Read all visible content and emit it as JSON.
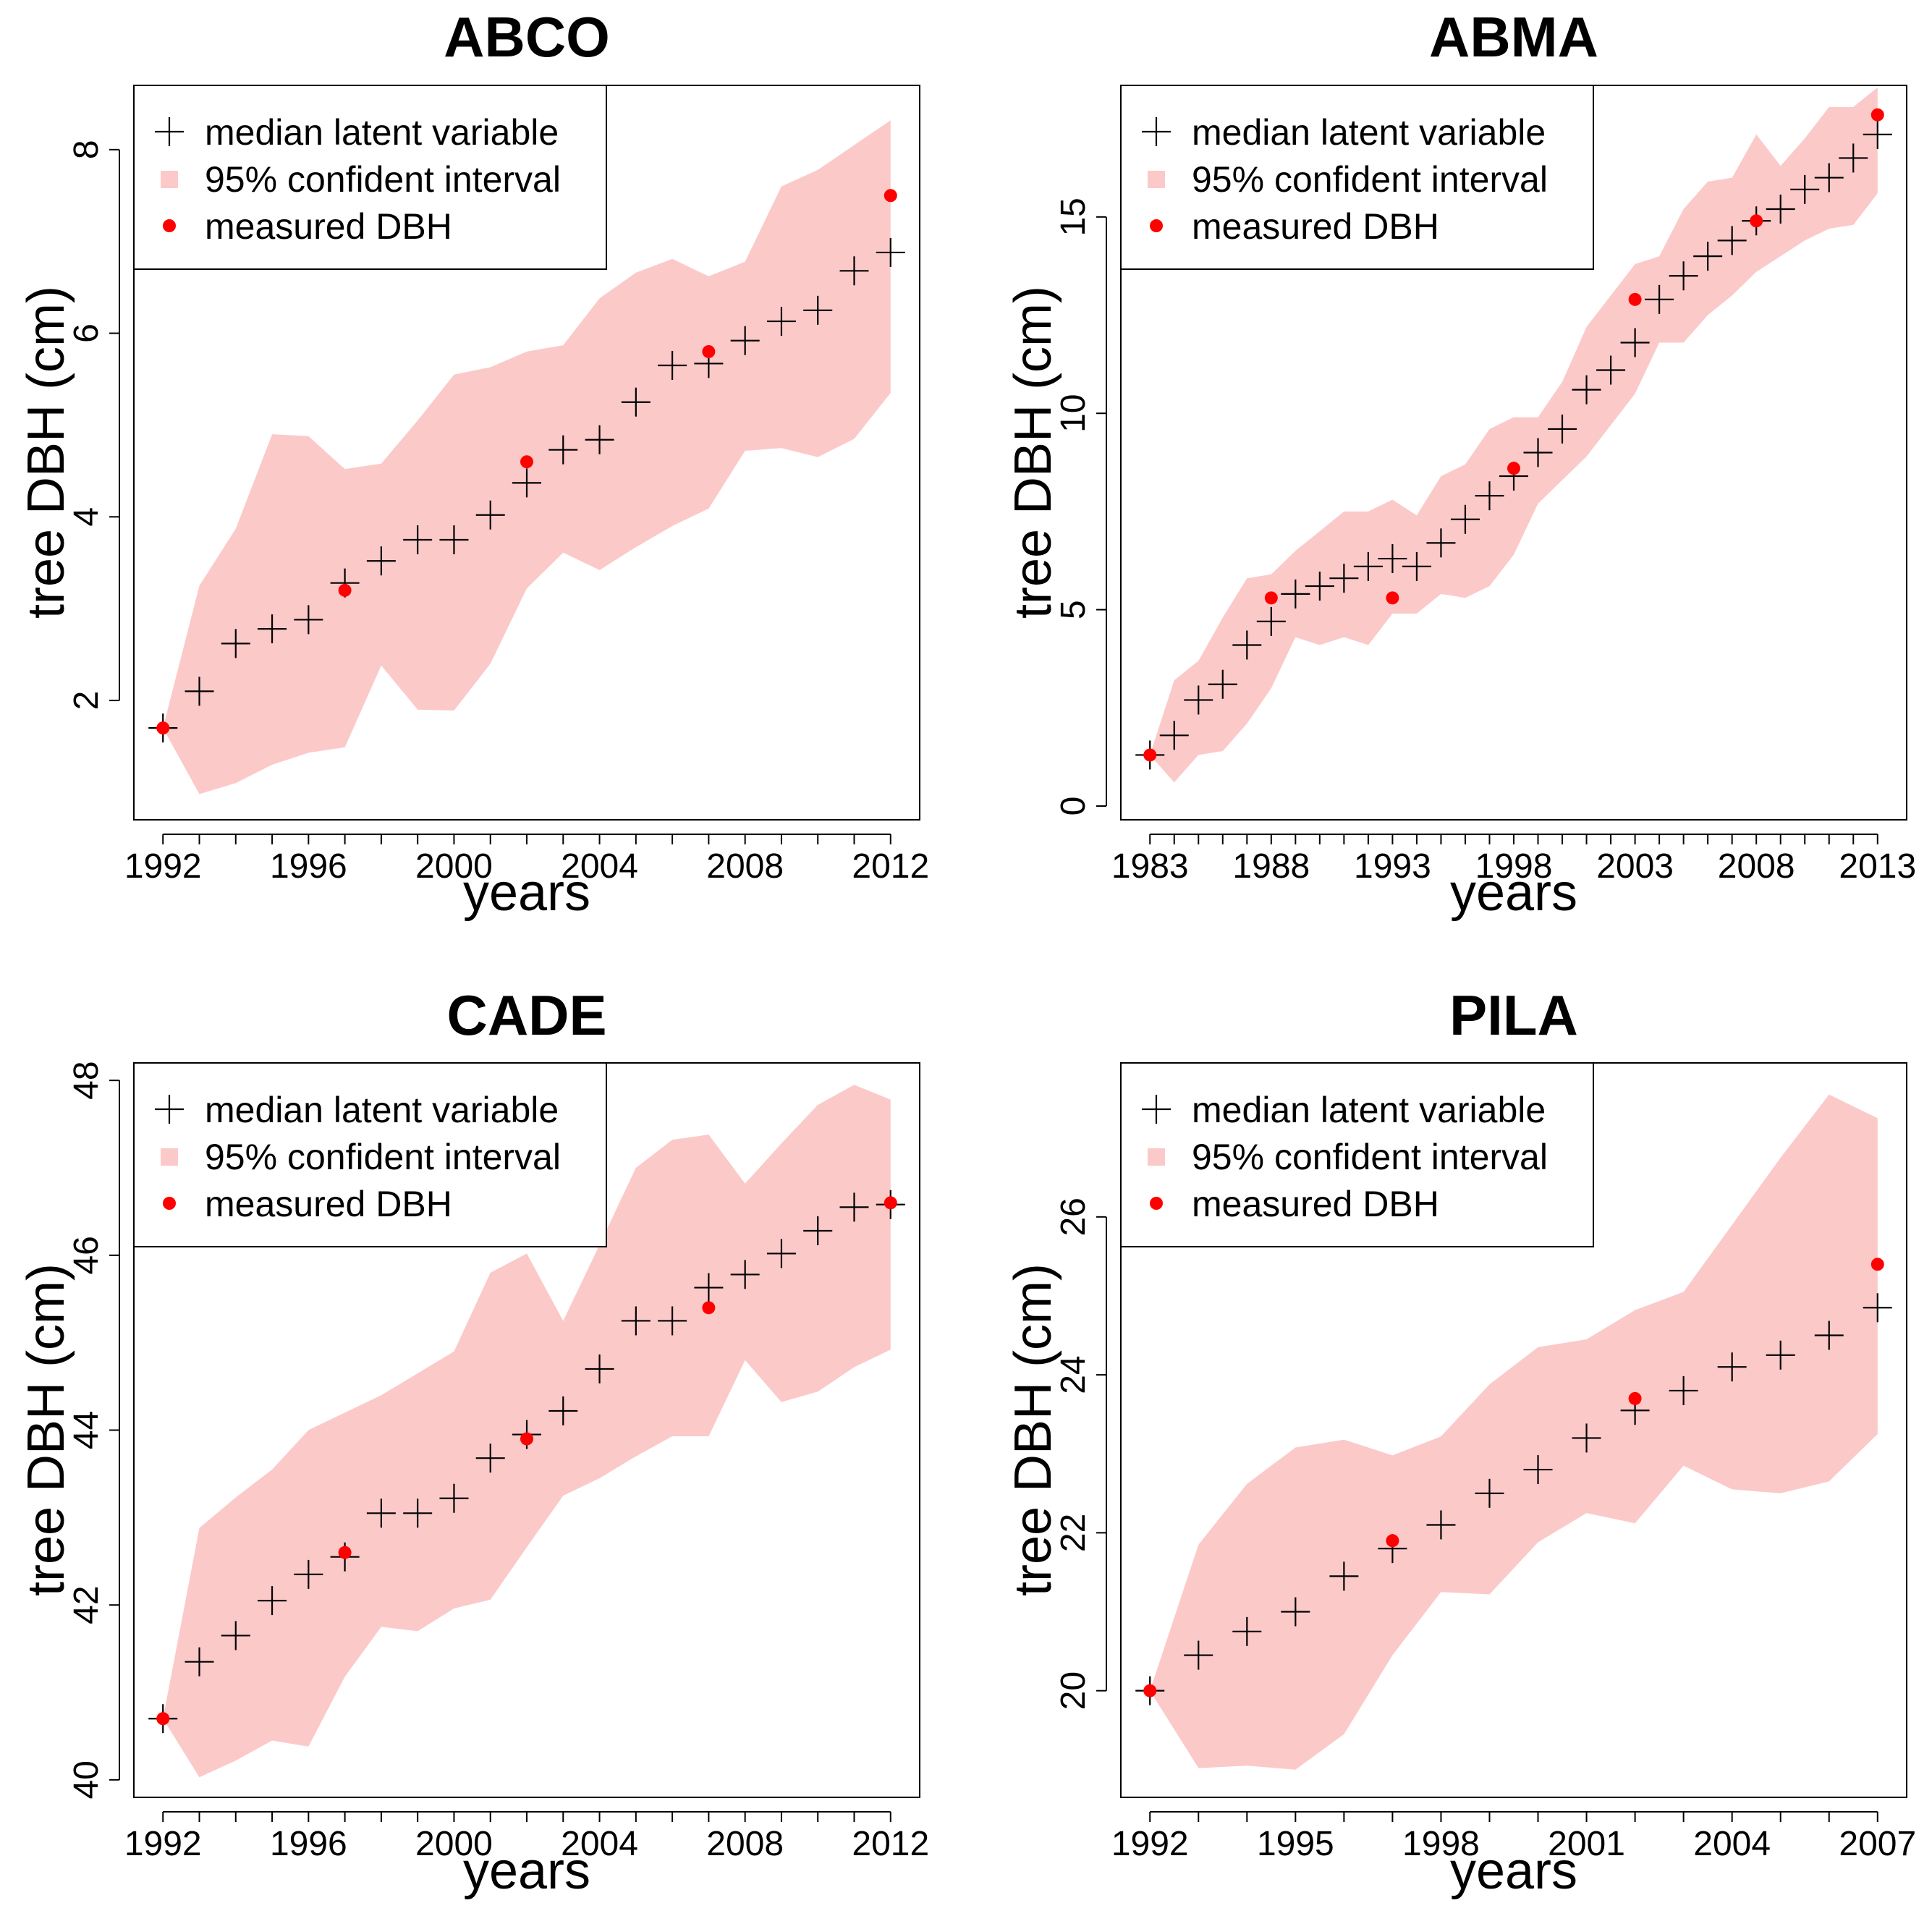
{
  "colors": {
    "band": "#fcc9c9",
    "median": "#000000",
    "measured": "#ff0000"
  },
  "legend": {
    "median_label": "median latent variable",
    "ci_label": "95% confident interval",
    "measured_label": "measured DBH"
  },
  "chart_data": [
    {
      "type": "line",
      "title": "ABCO",
      "xlabel": "years",
      "ylabel": "tree DBH (cm)",
      "xlim": [
        1991.2,
        2012.8
      ],
      "ylim": [
        0.7,
        8.7
      ],
      "xticks": [
        1992,
        1996,
        2000,
        2004,
        2008,
        2012
      ],
      "yticks": [
        2,
        4,
        6,
        8
      ],
      "x": [
        1992,
        1993,
        1994,
        1995,
        1996,
        1997,
        1998,
        1999,
        2000,
        2001,
        2002,
        2003,
        2004,
        2005,
        2006,
        2007,
        2008,
        2009,
        2010,
        2011,
        2012
      ],
      "series": [
        {
          "name": "median latent variable",
          "values": [
            1.7,
            2.1,
            2.62,
            2.78,
            2.88,
            3.28,
            3.52,
            3.75,
            3.75,
            4.02,
            4.37,
            4.73,
            4.84,
            5.25,
            5.65,
            5.67,
            5.92,
            6.13,
            6.25,
            6.68,
            6.88
          ]
        },
        {
          "name": "95% confident interval lower",
          "values": [
            1.7,
            0.98,
            1.1,
            1.3,
            1.43,
            1.49,
            2.38,
            1.9,
            1.89,
            2.4,
            3.22,
            3.61,
            3.42,
            3.67,
            3.9,
            4.09,
            4.72,
            4.75,
            4.65,
            4.85,
            5.35
          ]
        },
        {
          "name": "95% confident interval upper",
          "values": [
            1.7,
            3.25,
            3.87,
            4.9,
            4.88,
            4.52,
            4.58,
            5.05,
            5.55,
            5.63,
            5.8,
            5.87,
            6.38,
            6.66,
            6.81,
            6.62,
            6.78,
            7.6,
            7.78,
            8.05,
            8.32
          ]
        }
      ],
      "measured": {
        "x": [
          1992,
          1997,
          2002,
          2007,
          2012
        ],
        "values": [
          1.7,
          3.2,
          4.6,
          5.8,
          7.5
        ]
      }
    },
    {
      "type": "line",
      "title": "ABMA",
      "xlabel": "years",
      "ylabel": "tree DBH (cm)",
      "xlim": [
        1981.8,
        2014.2
      ],
      "ylim": [
        -0.35,
        18.35
      ],
      "xticks": [
        1983,
        1988,
        1993,
        1998,
        2003,
        2008,
        2013
      ],
      "yticks": [
        0,
        5,
        10,
        15
      ],
      "x": [
        1983,
        1984,
        1985,
        1986,
        1987,
        1988,
        1989,
        1990,
        1991,
        1992,
        1993,
        1994,
        1995,
        1996,
        1997,
        1998,
        1999,
        2000,
        2001,
        2002,
        2003,
        2004,
        2005,
        2006,
        2007,
        2008,
        2009,
        2010,
        2011,
        2012,
        2013
      ],
      "series": [
        {
          "name": "median latent variable",
          "values": [
            1.3,
            1.8,
            2.7,
            3.1,
            4.1,
            4.7,
            5.4,
            5.6,
            5.8,
            6.1,
            6.3,
            6.1,
            6.7,
            7.3,
            7.9,
            8.4,
            9.0,
            9.6,
            10.6,
            11.1,
            11.8,
            12.9,
            13.5,
            14.0,
            14.4,
            14.9,
            15.2,
            15.7,
            16.0,
            16.5,
            17.1
          ]
        },
        {
          "name": "95% confident interval lower",
          "values": [
            1.3,
            0.6,
            1.3,
            1.4,
            2.1,
            3.0,
            4.3,
            4.1,
            4.3,
            4.1,
            4.9,
            4.9,
            5.4,
            5.3,
            5.6,
            6.4,
            7.7,
            8.3,
            8.9,
            9.7,
            10.5,
            11.8,
            11.8,
            12.5,
            13.0,
            13.6,
            14.0,
            14.4,
            14.7,
            14.8,
            15.6
          ]
        },
        {
          "name": "95% confident interval upper",
          "values": [
            1.3,
            3.2,
            3.7,
            4.8,
            5.8,
            5.9,
            6.5,
            7.0,
            7.5,
            7.5,
            7.8,
            7.4,
            8.4,
            8.7,
            9.6,
            9.9,
            9.9,
            10.8,
            12.2,
            13.0,
            13.8,
            14.0,
            15.2,
            15.9,
            16.0,
            17.1,
            16.3,
            17.0,
            17.8,
            17.8,
            18.3
          ]
        }
      ],
      "measured": {
        "x": [
          1983,
          1988,
          1993,
          1998,
          2003,
          2008,
          2013
        ],
        "values": [
          1.3,
          5.3,
          5.3,
          8.6,
          12.9,
          14.9,
          17.6
        ]
      }
    },
    {
      "type": "line",
      "title": "CADE",
      "xlabel": "years",
      "ylabel": "tree DBH (cm)",
      "xlim": [
        1991.2,
        2012.8
      ],
      "ylim": [
        39.8,
        48.2
      ],
      "xticks": [
        1992,
        1996,
        2000,
        2004,
        2008,
        2012
      ],
      "yticks": [
        40,
        42,
        44,
        46,
        48
      ],
      "x": [
        1992,
        1993,
        1994,
        1995,
        1996,
        1997,
        1998,
        1999,
        2000,
        2001,
        2002,
        2003,
        2004,
        2005,
        2006,
        2007,
        2008,
        2009,
        2010,
        2011,
        2012
      ],
      "series": [
        {
          "name": "median latent variable",
          "values": [
            40.7,
            41.35,
            41.65,
            42.05,
            42.35,
            42.55,
            43.05,
            43.05,
            43.22,
            43.68,
            43.95,
            44.22,
            44.7,
            45.25,
            45.25,
            45.63,
            45.78,
            46.02,
            46.28,
            46.55,
            46.58
          ]
        },
        {
          "name": "95% confident interval lower",
          "values": [
            40.7,
            40.03,
            40.22,
            40.45,
            40.38,
            41.18,
            41.75,
            41.7,
            41.96,
            42.06,
            42.66,
            43.25,
            43.45,
            43.7,
            43.93,
            43.93,
            44.8,
            44.32,
            44.44,
            44.72,
            44.92
          ]
        },
        {
          "name": "95% confident interval upper",
          "values": [
            40.7,
            42.88,
            43.23,
            43.55,
            44.0,
            44.2,
            44.4,
            44.65,
            44.9,
            45.8,
            46.02,
            45.25,
            46.12,
            47.0,
            47.32,
            47.38,
            46.82,
            47.28,
            47.72,
            47.95,
            47.78
          ]
        }
      ],
      "measured": {
        "x": [
          1992,
          1997,
          2002,
          2007,
          2012
        ],
        "values": [
          40.7,
          42.6,
          43.9,
          45.4,
          46.6
        ]
      }
    },
    {
      "type": "line",
      "title": "PILA",
      "xlabel": "years",
      "ylabel": "tree DBH (cm)",
      "xlim": [
        1991.4,
        2007.6
      ],
      "ylim": [
        18.65,
        27.95
      ],
      "xticks": [
        1992,
        1995,
        1998,
        2001,
        2004,
        2007
      ],
      "yticks": [
        20,
        22,
        24,
        26
      ],
      "x": [
        1992,
        1993,
        1994,
        1995,
        1996,
        1997,
        1998,
        1999,
        2000,
        2001,
        2002,
        2003,
        2004,
        2005,
        2006,
        2007
      ],
      "series": [
        {
          "name": "median latent variable",
          "values": [
            20.0,
            20.45,
            20.75,
            21.0,
            21.45,
            21.8,
            22.1,
            22.5,
            22.8,
            23.2,
            23.55,
            23.8,
            24.1,
            24.25,
            24.5,
            24.85
          ]
        },
        {
          "name": "95% confident interval lower",
          "values": [
            20.0,
            19.02,
            19.05,
            19.0,
            19.45,
            20.45,
            21.25,
            21.22,
            21.88,
            22.25,
            22.12,
            22.85,
            22.55,
            22.5,
            22.65,
            23.25
          ]
        },
        {
          "name": "95% confident interval upper",
          "values": [
            20.0,
            21.85,
            22.62,
            23.08,
            23.18,
            22.98,
            23.22,
            23.88,
            24.35,
            24.45,
            24.82,
            25.05,
            25.9,
            26.75,
            27.55,
            27.25
          ]
        }
      ],
      "measured": {
        "x": [
          1992,
          1997,
          2002,
          2007
        ],
        "values": [
          20.0,
          21.9,
          23.7,
          25.4
        ]
      }
    }
  ]
}
